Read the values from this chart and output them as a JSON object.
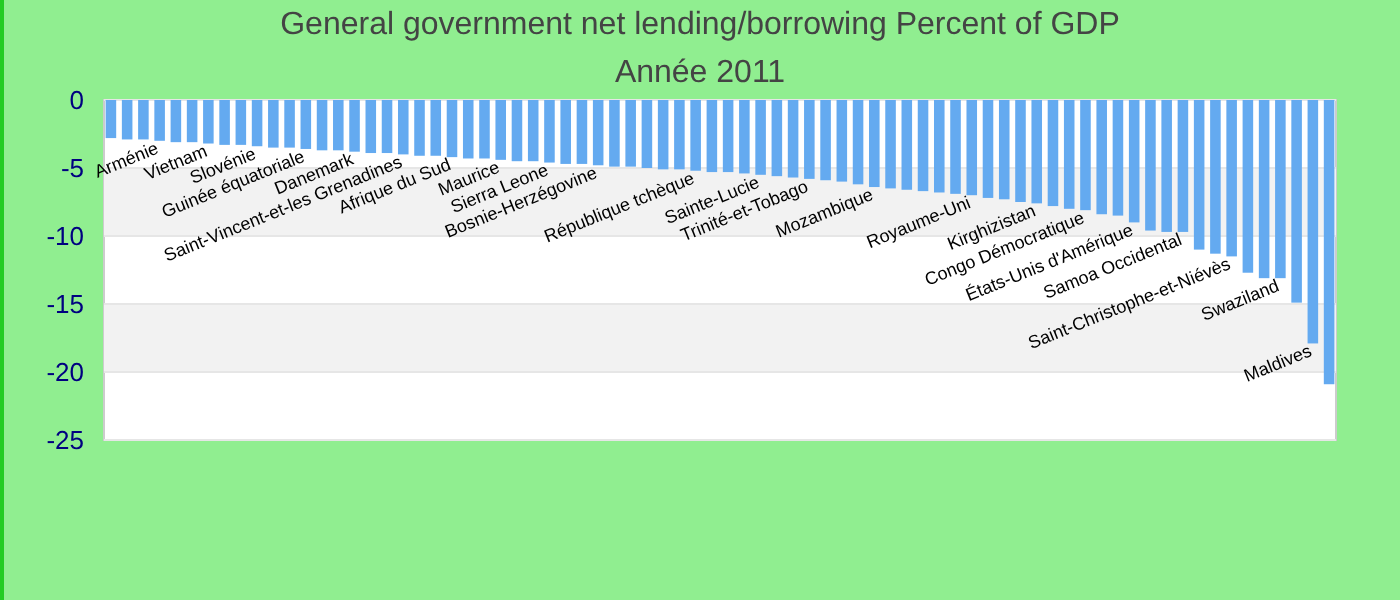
{
  "chart_data": {
    "type": "bar",
    "title": "General government net lending/borrowing  Percent of GDP",
    "subtitle": "Année 2011",
    "categories": [
      null,
      null,
      null,
      "Arménie",
      null,
      null,
      "Vietnam",
      null,
      null,
      "Slovénie",
      null,
      null,
      "Guinée équatoriale",
      null,
      null,
      "Danemark",
      null,
      null,
      "Saint-Vincent-et-les Grenadines",
      null,
      null,
      "Afrique du Sud",
      null,
      null,
      "Maurice",
      null,
      null,
      "Sierra Leone",
      null,
      null,
      "Bosnie-Herzégovine",
      null,
      null,
      null,
      null,
      null,
      "République tchèque",
      null,
      null,
      null,
      "Sainte-Lucie",
      null,
      null,
      "Trinité-et-Tobago",
      null,
      null,
      null,
      "Mozambique",
      null,
      null,
      null,
      null,
      null,
      "Royaume-Uni",
      null,
      null,
      null,
      "Kirghizistan",
      null,
      null,
      "Congo Démocratique",
      null,
      null,
      "États-Unis d'Amérique",
      null,
      null,
      "Samoa Occidental",
      null,
      null,
      "Saint-Christophe-et-Niévès",
      null,
      null,
      "Swaziland",
      null,
      "Maldives",
      null
    ],
    "values": [
      -2.8,
      -2.9,
      -2.9,
      -3.0,
      -3.1,
      -3.1,
      -3.2,
      -3.3,
      -3.3,
      -3.4,
      -3.5,
      -3.5,
      -3.6,
      -3.7,
      -3.7,
      -3.8,
      -3.9,
      -3.9,
      -4.0,
      -4.1,
      -4.1,
      -4.2,
      -4.3,
      -4.3,
      -4.4,
      -4.5,
      -4.5,
      -4.6,
      -4.7,
      -4.7,
      -4.8,
      -4.9,
      -4.9,
      -5.0,
      -5.1,
      -5.1,
      -5.2,
      -5.3,
      -5.3,
      -5.4,
      -5.5,
      -5.6,
      -5.7,
      -5.8,
      -5.9,
      -6.0,
      -6.2,
      -6.4,
      -6.5,
      -6.6,
      -6.7,
      -6.8,
      -6.9,
      -7.0,
      -7.2,
      -7.3,
      -7.5,
      -7.6,
      -7.8,
      -8.0,
      -8.1,
      -8.4,
      -8.5,
      -9.0,
      -9.6,
      -9.7,
      -9.7,
      -11.0,
      -11.3,
      -11.5,
      -12.7,
      -13.1,
      -13.1,
      -14.9,
      -17.9,
      -20.9
    ],
    "color": "#64aaf0",
    "ylim": [
      -25,
      0
    ],
    "yticks": [
      0,
      -5,
      -10,
      -15,
      -20,
      -25
    ],
    "grid": "y"
  }
}
